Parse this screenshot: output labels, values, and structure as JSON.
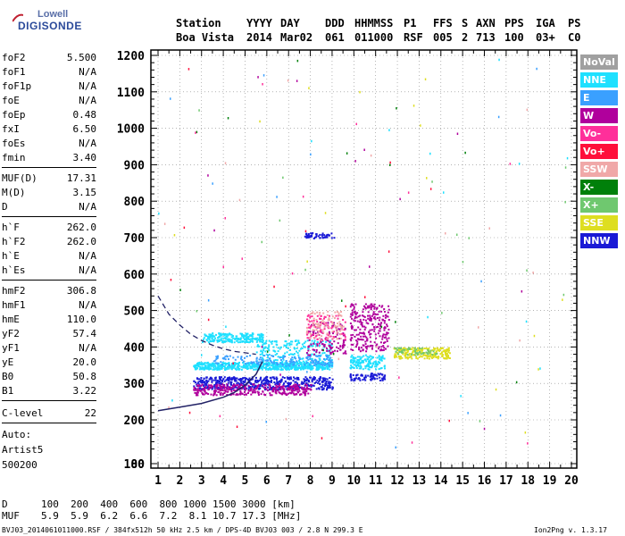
{
  "app": {
    "logo_line1": "Lowell",
    "logo_line2": "DIGISONDE"
  },
  "header": {
    "labels": [
      "Station",
      "YYYY",
      "DAY",
      "DDD",
      "HHMMSS",
      "P1",
      "FFS",
      "S",
      "AXN",
      "PPS",
      "IGA",
      "PS"
    ],
    "values": [
      "Boa Vista",
      "2014",
      "Mar02",
      "061",
      "011000",
      "RSF",
      "005",
      "2",
      "713",
      "100",
      "03+",
      "C0"
    ]
  },
  "params": [
    {
      "name": "foF2",
      "value": "5.500"
    },
    {
      "name": "foF1",
      "value": "N/A"
    },
    {
      "name": "foF1p",
      "value": "N/A"
    },
    {
      "name": "foE",
      "value": "N/A"
    },
    {
      "name": "foEp",
      "value": "0.48"
    },
    {
      "name": "fxI",
      "value": "6.50"
    },
    {
      "name": "foEs",
      "value": "N/A"
    },
    {
      "name": "fmin",
      "value": "3.40"
    },
    {
      "name": "MUF(D)",
      "value": "17.31"
    },
    {
      "name": "M(D)",
      "value": "3.15"
    },
    {
      "name": "D",
      "value": "N/A"
    },
    {
      "name": "h`F",
      "value": "262.0"
    },
    {
      "name": "h`F2",
      "value": "262.0"
    },
    {
      "name": "h`E",
      "value": "N/A"
    },
    {
      "name": "h`Es",
      "value": "N/A"
    },
    {
      "name": "hmF2",
      "value": "306.8"
    },
    {
      "name": "hmF1",
      "value": "N/A"
    },
    {
      "name": "hmE",
      "value": "110.0"
    },
    {
      "name": "yF2",
      "value": "57.4"
    },
    {
      "name": "yF1",
      "value": "N/A"
    },
    {
      "name": "yE",
      "value": "20.0"
    },
    {
      "name": "B0",
      "value": "50.8"
    },
    {
      "name": "B1",
      "value": "3.22"
    },
    {
      "name": "C-level",
      "value": "22"
    }
  ],
  "autoscaling": {
    "line1": "Auto:",
    "line2": "Artist5",
    "line3": "500200"
  },
  "legend": [
    {
      "label": "NoVal",
      "color": "#a0a0a0"
    },
    {
      "label": "NNE",
      "color": "#1ee0ff"
    },
    {
      "label": "E",
      "color": "#3aa0ff"
    },
    {
      "label": "W",
      "color": "#b0009c"
    },
    {
      "label": "Vo-",
      "color": "#ff2f9a"
    },
    {
      "label": "Vo+",
      "color": "#ff0f3a"
    },
    {
      "label": "SSW",
      "color": "#f0a8a8"
    },
    {
      "label": "X-",
      "color": "#00800a"
    },
    {
      "label": "X+",
      "color": "#6fc86f"
    },
    {
      "label": "SSE",
      "color": "#dede20"
    },
    {
      "label": "NNW",
      "color": "#1a1ad6"
    }
  ],
  "footer": {
    "d_label": "D",
    "d_values": "100  200  400  600  800 1000 1500 3000 [km]",
    "muf_label": "MUF",
    "muf_values": "5.9  5.9  6.2  6.6  7.2  8.1 10.7 17.3 [MHz]",
    "file_info": "BVJ03_2014061011000.RSF / 384fx512h 50 kHz 2.5 km / DPS-4D BVJ03 003 / 2.8 N 299.3 E",
    "version": "Ion2Png v. 1.3.17"
  },
  "chart_data": {
    "type": "scatter",
    "title": "",
    "xlabel": "",
    "ylabel": "",
    "xlim": [
      0.5,
      20.1
    ],
    "ylim": [
      80,
      1220
    ],
    "x_ticks": [
      1,
      2,
      3,
      4,
      5,
      6,
      7,
      8,
      9,
      10,
      11,
      12,
      13,
      14,
      15,
      16,
      17,
      18,
      19,
      20
    ],
    "y_ticks": [
      80,
      100,
      200,
      300,
      400,
      500,
      600,
      700,
      800,
      900,
      1000,
      1100,
      1200
    ],
    "grid": "dotted",
    "legend_position": "right",
    "echo_clusters": [
      {
        "series": "NNE",
        "f_range": [
          2.6,
          9.0
        ],
        "h_range": [
          340,
          360
        ],
        "density": 650
      },
      {
        "series": "NNE",
        "f_range": [
          3.0,
          5.8
        ],
        "h_range": [
          415,
          440
        ],
        "density": 220
      },
      {
        "series": "NNE",
        "f_range": [
          9.8,
          11.4
        ],
        "h_range": [
          340,
          380
        ],
        "density": 140
      },
      {
        "series": "NNE",
        "f_range": [
          5.5,
          9.0
        ],
        "h_range": [
          360,
          420
        ],
        "density": 200
      },
      {
        "series": "E",
        "f_range": [
          3.5,
          9.0
        ],
        "h_range": [
          350,
          380
        ],
        "density": 160
      },
      {
        "series": "NNW",
        "f_range": [
          2.6,
          9.0
        ],
        "h_range": [
          285,
          320
        ],
        "density": 520
      },
      {
        "series": "NNW",
        "f_range": [
          7.7,
          9.1
        ],
        "h_range": [
          700,
          715
        ],
        "density": 50
      },
      {
        "series": "NNW",
        "f_range": [
          9.8,
          11.4
        ],
        "h_range": [
          310,
          330
        ],
        "density": 80
      },
      {
        "series": "W",
        "f_range": [
          2.6,
          8.0
        ],
        "h_range": [
          270,
          300
        ],
        "density": 320
      },
      {
        "series": "W",
        "f_range": [
          9.8,
          11.6
        ],
        "h_range": [
          390,
          520
        ],
        "density": 260
      },
      {
        "series": "W",
        "f_range": [
          7.8,
          9.6
        ],
        "h_range": [
          380,
          470
        ],
        "density": 120
      },
      {
        "series": "Vo-",
        "f_range": [
          7.8,
          9.6
        ],
        "h_range": [
          420,
          490
        ],
        "density": 80
      },
      {
        "series": "SSW",
        "f_range": [
          7.8,
          9.5
        ],
        "h_range": [
          420,
          500
        ],
        "density": 90
      },
      {
        "series": "SSE",
        "f_range": [
          11.8,
          14.4
        ],
        "h_range": [
          370,
          400
        ],
        "density": 200
      },
      {
        "series": "X+",
        "f_range": [
          11.8,
          13.8
        ],
        "h_range": [
          380,
          400
        ],
        "density": 50
      }
    ],
    "profile_curve": {
      "series": "NNW",
      "x": [
        1.0,
        2.0,
        3.0,
        4.0,
        4.5,
        5.0,
        5.5,
        5.8
      ],
      "y": [
        225,
        235,
        245,
        262,
        275,
        295,
        325,
        360
      ]
    },
    "dashed_curve": {
      "x": [
        1.0,
        1.5,
        2.0,
        2.5,
        3.0,
        3.5,
        4.0,
        4.5,
        5.0,
        5.5
      ],
      "y": [
        540,
        490,
        460,
        435,
        418,
        405,
        395,
        388,
        384,
        380
      ]
    }
  }
}
